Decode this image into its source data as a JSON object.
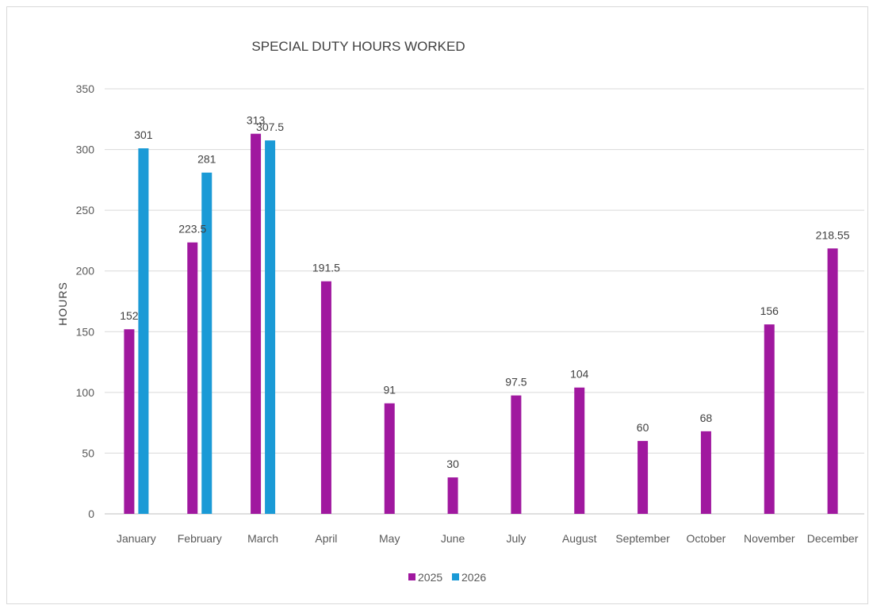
{
  "chart_data": {
    "type": "bar",
    "title": "SPECIAL DUTY HOURS WORKED",
    "xlabel": "",
    "ylabel": "HOURS",
    "ylim": [
      0,
      350
    ],
    "yticks": [
      0,
      50,
      100,
      150,
      200,
      250,
      300,
      350
    ],
    "grid": true,
    "legend_position": "bottom",
    "categories": [
      "January",
      "February",
      "March",
      "April",
      "May",
      "June",
      "July",
      "August",
      "September",
      "October",
      "November",
      "December"
    ],
    "series": [
      {
        "name": "2025",
        "color": "#a0189f",
        "values": [
          152,
          223.5,
          313,
          191.5,
          91,
          30,
          97.5,
          104,
          60,
          68,
          156,
          218.55
        ],
        "labels": [
          "152",
          "223.5",
          "313",
          "191.5",
          "91",
          "30",
          "97.5",
          "104",
          "60",
          "68",
          "156",
          "218.55"
        ]
      },
      {
        "name": "2026",
        "color": "#1a9ad6",
        "values": [
          301,
          281,
          307.5,
          null,
          null,
          null,
          null,
          null,
          null,
          null,
          null,
          null
        ],
        "labels": [
          "301",
          "281",
          "307.5",
          "",
          "",
          "",
          "",
          "",
          "",
          "",
          "",
          ""
        ]
      }
    ]
  }
}
